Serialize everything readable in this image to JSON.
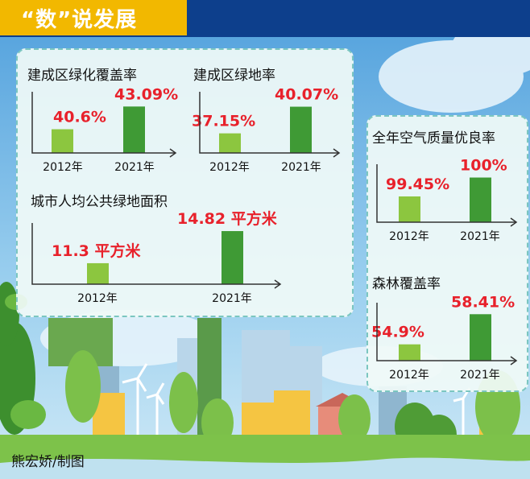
{
  "header": {
    "title": "“数”说发展"
  },
  "credit": "熊宏娇/制图",
  "colors": {
    "bar_2012": "#8cc63f",
    "bar_2021": "#3f9a35",
    "value_text": "#e8212b",
    "header_bar": "#f2b800",
    "header_band": "#0d3f8c"
  },
  "chart_data": [
    {
      "type": "bar",
      "title": "建成区绿化覆盖率",
      "categories": [
        "2012年",
        "2021年"
      ],
      "values": [
        40.6,
        43.09
      ],
      "labels": [
        "40.6%",
        "43.09%"
      ],
      "ylim": [
        38,
        44
      ]
    },
    {
      "type": "bar",
      "title": "建成区绿地率",
      "categories": [
        "2012年",
        "2021年"
      ],
      "values": [
        37.15,
        40.07
      ],
      "labels": [
        "37.15%",
        "40.07%"
      ],
      "ylim": [
        35,
        41
      ]
    },
    {
      "type": "bar",
      "title": "城市人均公共绿地面积",
      "categories": [
        "2012年",
        "2021年"
      ],
      "values": [
        11.3,
        14.82
      ],
      "labels": [
        "11.3 平方米",
        "14.82 平方米"
      ],
      "ylim": [
        9,
        15
      ]
    },
    {
      "type": "bar",
      "title": "全年空气质量优良率",
      "categories": [
        "2012年",
        "2021年"
      ],
      "values": [
        99.45,
        100
      ],
      "labels": [
        "99.45%",
        "100%"
      ],
      "ylim": [
        98.7,
        100.2
      ]
    },
    {
      "type": "bar",
      "title": "森林覆盖率",
      "categories": [
        "2012年",
        "2021年"
      ],
      "values": [
        54.9,
        58.41
      ],
      "labels": [
        "54.9%",
        "58.41%"
      ],
      "ylim": [
        53,
        59
      ]
    }
  ]
}
